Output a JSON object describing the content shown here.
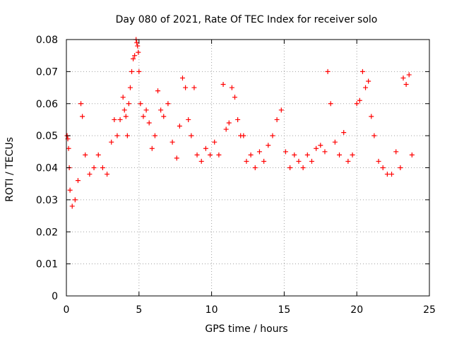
{
  "chart_data": {
    "type": "scatter",
    "title": "Day 080 of 2021, Rate Of TEC Index for receiver solo",
    "xlabel": "GPS time / hours",
    "ylabel": "ROTI / TECUs",
    "xlim": [
      0,
      25
    ],
    "ylim": [
      0,
      0.08
    ],
    "x_ticks": [
      0,
      5,
      10,
      15,
      20,
      25
    ],
    "x_tick_labels": [
      "0",
      "5",
      "10",
      "15",
      "20",
      "25"
    ],
    "y_ticks": [
      0,
      0.01,
      0.02,
      0.03,
      0.04,
      0.05,
      0.06,
      0.07,
      0.08
    ],
    "y_tick_labels": [
      "0",
      "0.01",
      "0.02",
      "0.03",
      "0.04",
      "0.05",
      "0.06",
      "0.07",
      "0.08"
    ],
    "grid": true,
    "marker": "+",
    "color": "#ff0000",
    "series": [
      {
        "name": "ROTI",
        "x": [
          0.05,
          0.1,
          0.15,
          0.2,
          0.25,
          0.4,
          0.6,
          0.8,
          1.0,
          1.1,
          1.3,
          1.6,
          1.9,
          2.2,
          2.5,
          2.8,
          3.1,
          3.3,
          3.5,
          3.7,
          3.9,
          4.0,
          4.1,
          4.2,
          4.3,
          4.4,
          4.5,
          4.6,
          4.7,
          4.8,
          4.85,
          4.9,
          4.95,
          5.0,
          5.1,
          5.3,
          5.5,
          5.7,
          5.9,
          6.1,
          6.3,
          6.5,
          6.7,
          7.0,
          7.3,
          7.6,
          7.8,
          8.0,
          8.2,
          8.4,
          8.6,
          8.8,
          9.0,
          9.3,
          9.6,
          9.9,
          10.2,
          10.5,
          10.8,
          11.0,
          11.2,
          11.4,
          11.6,
          11.8,
          12.0,
          12.2,
          12.4,
          12.7,
          13.0,
          13.3,
          13.6,
          13.9,
          14.2,
          14.5,
          14.8,
          15.1,
          15.4,
          15.7,
          16.0,
          16.3,
          16.6,
          16.9,
          17.2,
          17.5,
          17.8,
          18.0,
          18.2,
          18.5,
          18.8,
          19.1,
          19.4,
          19.7,
          20.0,
          20.2,
          20.4,
          20.6,
          20.8,
          21.0,
          21.2,
          21.5,
          21.8,
          22.1,
          22.4,
          22.7,
          23.0,
          23.2,
          23.4,
          23.6,
          23.8
        ],
        "y": [
          0.05,
          0.049,
          0.046,
          0.04,
          0.033,
          0.028,
          0.03,
          0.036,
          0.06,
          0.056,
          0.044,
          0.038,
          0.04,
          0.044,
          0.04,
          0.038,
          0.048,
          0.055,
          0.05,
          0.055,
          0.062,
          0.058,
          0.056,
          0.05,
          0.06,
          0.065,
          0.07,
          0.074,
          0.075,
          0.08,
          0.079,
          0.078,
          0.076,
          0.07,
          0.06,
          0.056,
          0.058,
          0.054,
          0.046,
          0.05,
          0.064,
          0.058,
          0.056,
          0.06,
          0.048,
          0.043,
          0.053,
          0.068,
          0.065,
          0.055,
          0.05,
          0.065,
          0.044,
          0.042,
          0.046,
          0.044,
          0.048,
          0.044,
          0.066,
          0.052,
          0.054,
          0.065,
          0.062,
          0.055,
          0.05,
          0.05,
          0.042,
          0.044,
          0.04,
          0.045,
          0.042,
          0.047,
          0.05,
          0.055,
          0.058,
          0.045,
          0.04,
          0.044,
          0.042,
          0.04,
          0.044,
          0.042,
          0.046,
          0.047,
          0.045,
          0.07,
          0.06,
          0.048,
          0.044,
          0.051,
          0.042,
          0.044,
          0.06,
          0.061,
          0.07,
          0.065,
          0.067,
          0.056,
          0.05,
          0.042,
          0.04,
          0.038,
          0.038,
          0.045,
          0.04,
          0.068,
          0.066,
          0.069,
          0.044
        ]
      }
    ]
  }
}
